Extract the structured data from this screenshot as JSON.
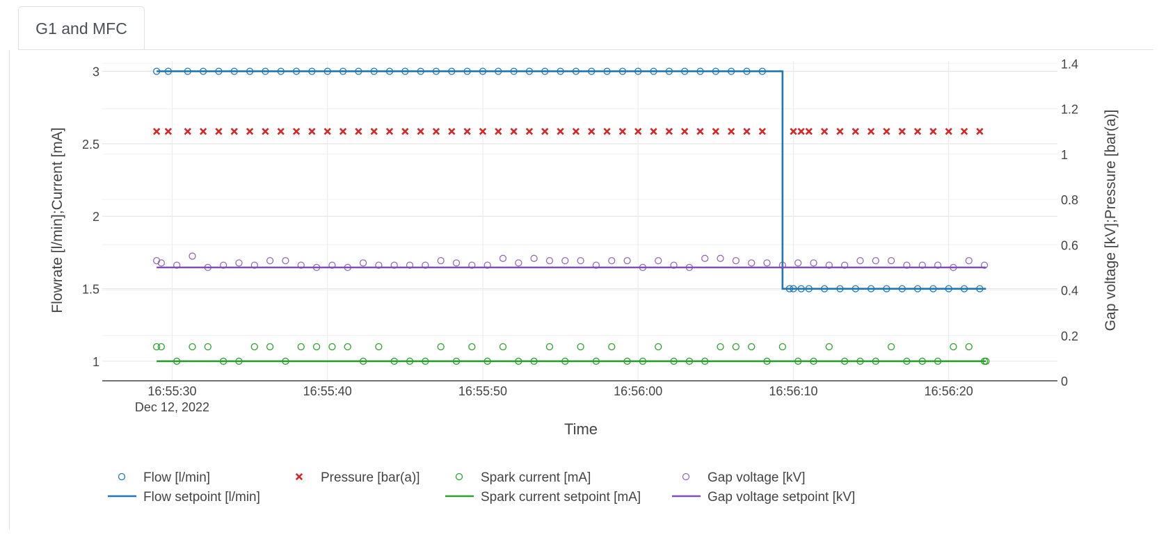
{
  "tabs": [
    {
      "label": "G1 and MFC",
      "active": true
    }
  ],
  "chart_data": {
    "type": "line",
    "xlabel": "Time",
    "ylabel": "Flowrate [l/min];Current [mA]",
    "y2label": "Gap voltage [kV];Pressure [bar(a)]",
    "x_start": "16:55:29",
    "x_end": "16:56:22",
    "xlim": [
      "16:55:25.5",
      "16:56:27"
    ],
    "x_ticks": [
      {
        "value": "16:55:30",
        "label": "16:55:30",
        "sublabel": "Dec 12, 2022"
      },
      {
        "value": "16:55:40",
        "label": "16:55:40"
      },
      {
        "value": "16:55:50",
        "label": "16:55:50"
      },
      {
        "value": "16:56:00",
        "label": "16:56:00"
      },
      {
        "value": "16:56:10",
        "label": "16:56:10"
      },
      {
        "value": "16:56:20",
        "label": "16:56:20"
      }
    ],
    "ylim": [
      0.865,
      3.07
    ],
    "y_ticks": [
      {
        "value": 1,
        "label": "1"
      },
      {
        "value": 1.5,
        "label": "1.5"
      },
      {
        "value": 2,
        "label": "2"
      },
      {
        "value": 2.5,
        "label": "2.5"
      },
      {
        "value": 3,
        "label": "3"
      }
    ],
    "y2lim": [
      0,
      1.41
    ],
    "y2_ticks": [
      {
        "value": 0,
        "label": "0"
      },
      {
        "value": 0.2,
        "label": "0.2"
      },
      {
        "value": 0.4,
        "label": "0.4"
      },
      {
        "value": 0.6,
        "label": "0.6"
      },
      {
        "value": 0.8,
        "label": "0.8"
      },
      {
        "value": 1,
        "label": "1"
      },
      {
        "value": 1.2,
        "label": "1.2"
      },
      {
        "value": 1.4,
        "label": "1.4"
      }
    ],
    "grid": true,
    "legend_position": "bottom",
    "series": [
      {
        "name": "Flow [l/min]",
        "mode": "markers",
        "marker": "circle-open",
        "color": "#1f77b4",
        "axis": "y",
        "x_offsets_s": [
          0,
          0.75,
          2,
          3,
          4,
          5,
          6,
          7,
          8,
          9,
          10,
          11,
          12,
          13,
          14,
          15,
          16,
          17,
          18,
          19,
          20,
          21,
          22,
          23,
          24,
          25,
          26,
          27,
          28,
          29,
          30,
          31,
          32,
          33,
          34,
          35,
          36,
          37,
          38,
          39,
          40.75,
          41,
          41.5,
          42,
          43,
          44,
          45,
          46,
          47,
          48,
          49,
          50,
          51,
          52,
          53
        ],
        "values": [
          3,
          3,
          3,
          3,
          3,
          3,
          3,
          3,
          3,
          3,
          3,
          3,
          3,
          3,
          3,
          3,
          3,
          3,
          3,
          3,
          3,
          3,
          3,
          3,
          3,
          3,
          3,
          3,
          3,
          3,
          3,
          3,
          3,
          3,
          3,
          3,
          3,
          3,
          3,
          3,
          1.5,
          1.5,
          1.5,
          1.5,
          1.5,
          1.5,
          1.5,
          1.5,
          1.5,
          1.5,
          1.5,
          1.5,
          1.5,
          1.5,
          1.5
        ]
      },
      {
        "name": "Pressure [bar(a)]",
        "mode": "markers",
        "marker": "x",
        "color": "#d62728",
        "axis": "y2",
        "x_offsets_s": [
          0,
          0.75,
          2,
          3,
          4,
          5,
          6,
          7,
          8,
          9,
          10,
          11,
          12,
          13,
          14,
          15,
          16,
          17,
          18,
          19,
          20,
          21,
          22,
          23,
          24,
          25,
          26,
          27,
          28,
          29,
          30,
          31,
          32,
          33,
          34,
          35,
          36,
          37,
          38,
          39,
          41,
          41.5,
          42,
          43,
          44,
          45,
          46,
          47,
          48,
          49,
          50,
          51,
          52,
          53
        ],
        "values": [
          1.1,
          1.1,
          1.1,
          1.1,
          1.1,
          1.1,
          1.1,
          1.1,
          1.1,
          1.1,
          1.1,
          1.1,
          1.1,
          1.1,
          1.1,
          1.1,
          1.1,
          1.1,
          1.1,
          1.1,
          1.1,
          1.1,
          1.1,
          1.1,
          1.1,
          1.1,
          1.1,
          1.1,
          1.1,
          1.1,
          1.1,
          1.1,
          1.1,
          1.1,
          1.1,
          1.1,
          1.1,
          1.1,
          1.1,
          1.1,
          1.1,
          1.1,
          1.1,
          1.1,
          1.1,
          1.1,
          1.1,
          1.1,
          1.1,
          1.1,
          1.1,
          1.1,
          1.1,
          1.1
        ]
      },
      {
        "name": "Spark current [mA]",
        "mode": "markers",
        "marker": "circle-open",
        "color": "#2ca02c",
        "axis": "y",
        "x_offsets_s": [
          0,
          0.3,
          1.3,
          2.3,
          3.3,
          4.3,
          5.3,
          6.3,
          7.3,
          8.3,
          9.3,
          10.3,
          11.3,
          12.3,
          13.3,
          14.3,
          15.3,
          16.3,
          17.3,
          18.3,
          19.3,
          20.3,
          21.3,
          22.3,
          23.3,
          24.3,
          25.3,
          26.3,
          27.3,
          28.3,
          29.3,
          30.3,
          31.3,
          32.3,
          33.3,
          34.3,
          35.3,
          36.3,
          37.3,
          38.3,
          39.3,
          40.3,
          41.3,
          42.3,
          43.3,
          44.3,
          45.3,
          46.3,
          47.3,
          48.3,
          49.3,
          50.3,
          51.3,
          52.3,
          53.3,
          53.4
        ],
        "values": [
          1.1,
          1.1,
          1.0,
          1.1,
          1.1,
          1.0,
          1.0,
          1.1,
          1.1,
          1.0,
          1.1,
          1.1,
          1.1,
          1.1,
          1.0,
          1.1,
          1.0,
          1.0,
          1.0,
          1.1,
          1.0,
          1.1,
          1.0,
          1.1,
          1.0,
          1.0,
          1.1,
          1.0,
          1.1,
          1.0,
          1.1,
          1.0,
          1.0,
          1.1,
          1.0,
          1.0,
          1.0,
          1.1,
          1.1,
          1.1,
          1.0,
          1.1,
          1.0,
          1.0,
          1.1,
          1.0,
          1.0,
          1.0,
          1.1,
          1.0,
          1.0,
          1.0,
          1.1,
          1.1,
          1.0,
          1.0
        ]
      },
      {
        "name": "Gap voltage [kV]",
        "mode": "markers",
        "marker": "circle-open",
        "color": "#9467bd",
        "axis": "y2",
        "x_offsets_s": [
          0,
          0.3,
          1.3,
          2.3,
          3.3,
          4.3,
          5.3,
          6.3,
          7.3,
          8.3,
          9.3,
          10.3,
          11.3,
          12.3,
          13.3,
          14.3,
          15.3,
          16.3,
          17.3,
          18.3,
          19.3,
          20.3,
          21.3,
          22.3,
          23.3,
          24.3,
          25.3,
          26.3,
          27.3,
          28.3,
          29.3,
          30.3,
          31.3,
          32.3,
          33.3,
          34.3,
          35.3,
          36.3,
          37.3,
          38.3,
          39.3,
          40.3,
          41.3,
          42.3,
          43.3,
          44.3,
          45.3,
          46.3,
          47.3,
          48.3,
          49.3,
          50.3,
          51.3,
          52.3,
          53.3
        ],
        "values": [
          0.53,
          0.52,
          0.51,
          0.55,
          0.5,
          0.51,
          0.52,
          0.51,
          0.53,
          0.53,
          0.51,
          0.5,
          0.51,
          0.5,
          0.52,
          0.51,
          0.51,
          0.51,
          0.51,
          0.53,
          0.52,
          0.51,
          0.51,
          0.54,
          0.52,
          0.54,
          0.53,
          0.53,
          0.53,
          0.51,
          0.53,
          0.53,
          0.5,
          0.53,
          0.51,
          0.5,
          0.54,
          0.54,
          0.53,
          0.52,
          0.52,
          0.51,
          0.52,
          0.52,
          0.51,
          0.51,
          0.53,
          0.53,
          0.53,
          0.51,
          0.51,
          0.51,
          0.5,
          0.53,
          0.51
        ]
      },
      {
        "name": "Flow setpoint [l/min]",
        "mode": "lines",
        "line_shape": "hv",
        "color": "#1f77b4",
        "axis": "y",
        "x_offsets_s": [
          0,
          40.3,
          53.4
        ],
        "values": [
          3,
          1.5,
          1.5
        ]
      },
      {
        "name": "Spark current setpoint [mA]",
        "mode": "lines",
        "color": "#2ca02c",
        "axis": "y",
        "x_offsets_s": [
          0,
          53.4
        ],
        "values": [
          1,
          1
        ]
      },
      {
        "name": "Gap voltage setpoint [kV]",
        "mode": "lines",
        "color": "#7f4fb5",
        "axis": "y2",
        "x_offsets_s": [
          0,
          53.4
        ],
        "values": [
          0.5,
          0.5
        ]
      }
    ]
  }
}
